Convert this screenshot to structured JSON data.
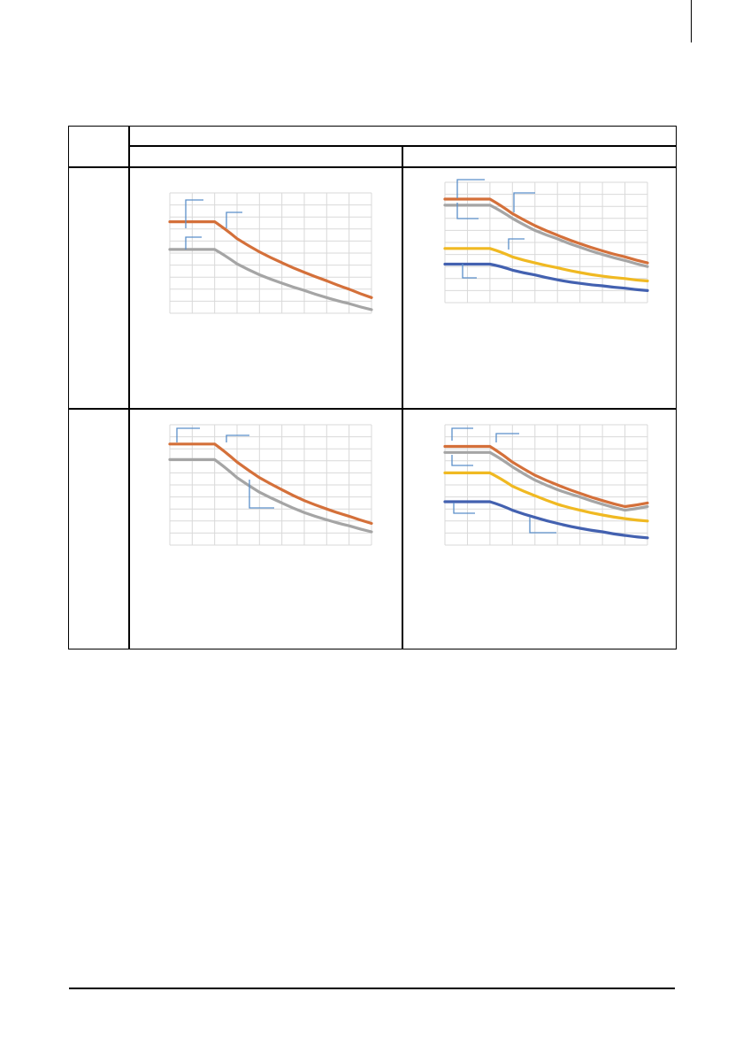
{
  "colors": {
    "border": "#000000",
    "grid": "#d9d9d9",
    "leader": "#5b8fc9",
    "series_orange": "#d4703a",
    "series_gray": "#a5a5a5",
    "series_yellow": "#f0b922",
    "series_blue": "#4361b0"
  },
  "chart_data": [
    {
      "type": "line",
      "xlim": [
        0,
        9
      ],
      "ylim": [
        0,
        10
      ],
      "grid": true,
      "legend": "none",
      "x": [
        0,
        1,
        2,
        3,
        4,
        5,
        6,
        7,
        8,
        9
      ],
      "series": [
        {
          "color": "#d4703a",
          "values": [
            7.6,
            7.6,
            7.6,
            6.2,
            5.1,
            4.2,
            3.4,
            2.7,
            2.0,
            1.3
          ]
        },
        {
          "color": "#a5a5a5",
          "values": [
            5.3,
            5.3,
            5.3,
            4.1,
            3.2,
            2.5,
            1.9,
            1.3,
            0.8,
            0.3
          ]
        }
      ]
    },
    {
      "type": "line",
      "xlim": [
        0,
        9
      ],
      "ylim": [
        0,
        10
      ],
      "grid": true,
      "legend": "none",
      "x": [
        0,
        1,
        2,
        3,
        4,
        5,
        6,
        7,
        8,
        9
      ],
      "series": [
        {
          "color": "#d4703a",
          "values": [
            8.6,
            8.6,
            8.6,
            7.4,
            6.4,
            5.6,
            4.9,
            4.3,
            3.8,
            3.3
          ]
        },
        {
          "color": "#a5a5a5",
          "values": [
            8.1,
            8.1,
            8.1,
            7.0,
            6.0,
            5.3,
            4.6,
            4.0,
            3.5,
            3.0
          ]
        },
        {
          "color": "#f0b922",
          "values": [
            4.5,
            4.5,
            4.5,
            3.8,
            3.3,
            2.9,
            2.5,
            2.2,
            2.0,
            1.8
          ]
        },
        {
          "color": "#4361b0",
          "values": [
            3.2,
            3.2,
            3.2,
            2.7,
            2.3,
            1.9,
            1.6,
            1.4,
            1.2,
            1.0
          ]
        }
      ]
    },
    {
      "type": "line",
      "xlim": [
        0,
        9
      ],
      "ylim": [
        0,
        10
      ],
      "grid": true,
      "legend": "none",
      "x": [
        0,
        1,
        2,
        3,
        4,
        5,
        6,
        7,
        8,
        9
      ],
      "series": [
        {
          "color": "#d4703a",
          "values": [
            8.4,
            8.4,
            8.4,
            6.9,
            5.6,
            4.6,
            3.7,
            3.0,
            2.4,
            1.8
          ]
        },
        {
          "color": "#a5a5a5",
          "values": [
            7.1,
            7.1,
            7.1,
            5.6,
            4.4,
            3.5,
            2.7,
            2.1,
            1.6,
            1.1
          ]
        }
      ]
    },
    {
      "type": "line",
      "xlim": [
        0,
        9
      ],
      "ylim": [
        0,
        10
      ],
      "grid": true,
      "legend": "none",
      "x": [
        0,
        1,
        2,
        3,
        4,
        5,
        6,
        7,
        8,
        9
      ],
      "series": [
        {
          "color": "#d4703a",
          "values": [
            8.2,
            8.2,
            8.2,
            6.9,
            5.8,
            5.0,
            4.3,
            3.7,
            3.2,
            3.5
          ]
        },
        {
          "color": "#a5a5a5",
          "values": [
            7.7,
            7.7,
            7.7,
            6.5,
            5.4,
            4.6,
            4.0,
            3.4,
            2.9,
            3.2
          ]
        },
        {
          "color": "#f0b922",
          "values": [
            6.0,
            6.0,
            6.0,
            4.9,
            4.1,
            3.4,
            2.9,
            2.5,
            2.2,
            2.0
          ]
        },
        {
          "color": "#4361b0",
          "values": [
            3.6,
            3.6,
            3.6,
            2.9,
            2.3,
            1.8,
            1.4,
            1.1,
            0.8,
            0.6
          ]
        }
      ]
    }
  ]
}
